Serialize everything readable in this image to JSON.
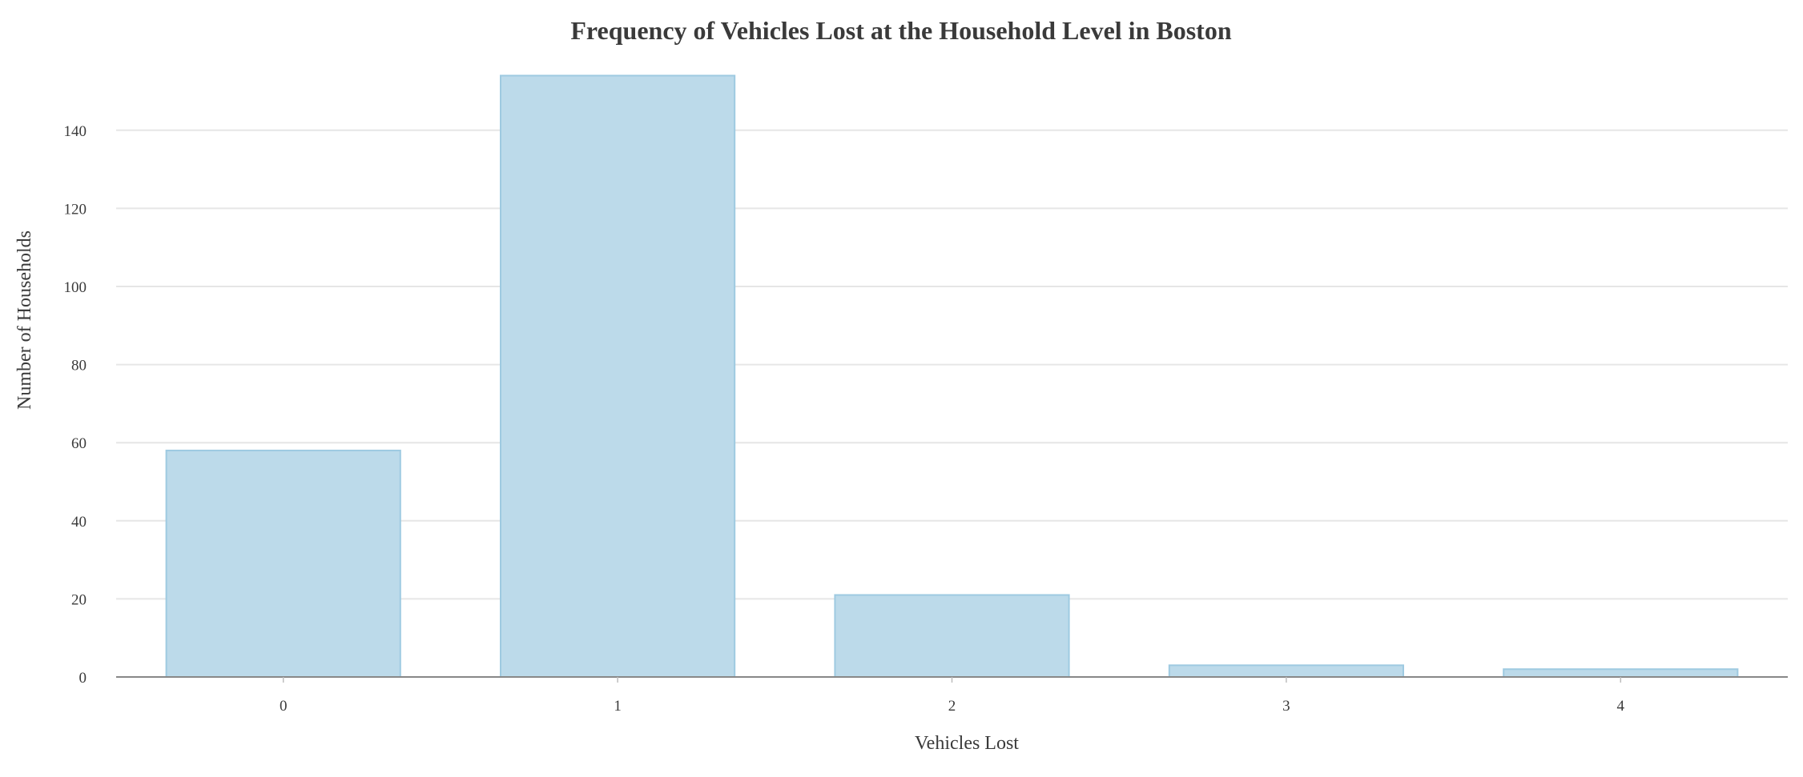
{
  "chart_data": {
    "type": "bar",
    "title": "Frequency of Vehicles Lost at the Household Level in Boston",
    "xlabel": "Vehicles Lost",
    "ylabel": "Number of Households",
    "categories": [
      "0",
      "1",
      "2",
      "3",
      "4"
    ],
    "values": [
      58,
      154,
      21,
      3,
      2
    ],
    "yticks": [
      0,
      20,
      40,
      60,
      80,
      100,
      120,
      140
    ],
    "ylim": [
      0,
      160
    ],
    "grid": true,
    "legend": "none"
  },
  "colors": {
    "bar_fill": "#bcdaea",
    "bar_stroke": "#9ecae1",
    "gridline": "#e6e6e6",
    "baseline": "#888888",
    "text": "#3a3a3a"
  }
}
